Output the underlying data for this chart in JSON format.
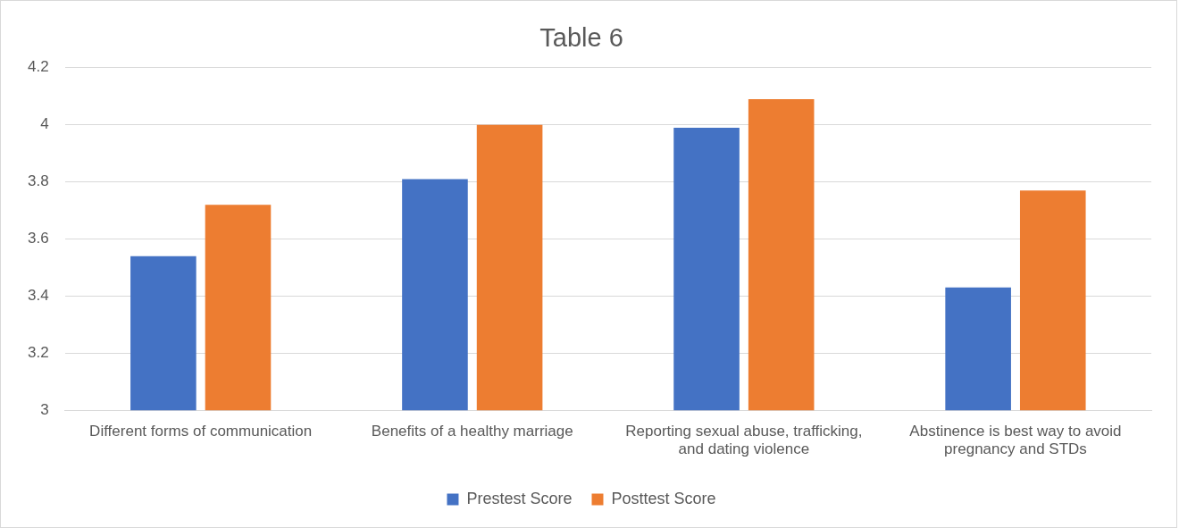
{
  "chart_data": {
    "type": "bar",
    "title": "Table 6",
    "categories": [
      "Different forms of communication",
      "Benefits of a healthy marriage",
      "Reporting sexual abuse, trafficking, and dating violence",
      "Abstinence is best way to avoid pregnancy and STDs"
    ],
    "series": [
      {
        "name": "Prestest Score",
        "color": "#4472c4",
        "values": [
          3.54,
          3.81,
          3.99,
          3.43
        ]
      },
      {
        "name": "Posttest Score",
        "color": "#ed7d31",
        "values": [
          3.72,
          4.0,
          4.09,
          3.77
        ]
      }
    ],
    "ylim": [
      3,
      4.2
    ],
    "yticks": [
      3,
      3.2,
      3.4,
      3.6,
      3.8,
      4,
      4.2
    ],
    "grid": "y",
    "legend": "bottom"
  }
}
